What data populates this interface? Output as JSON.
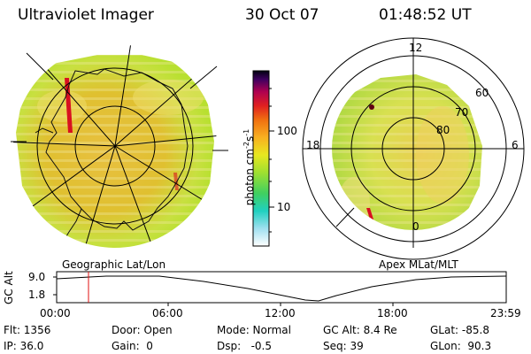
{
  "header": {
    "instrument": "Ultraviolet Imager",
    "date": "30 Oct 07",
    "time": "01:48:52 UT"
  },
  "colorbar": {
    "unit_label": "photon cm",
    "unit_exp1": "-2",
    "unit_mid": "s",
    "unit_exp2": "-1",
    "tick_100": "100",
    "tick_10": "10"
  },
  "geo_panel": {
    "label": "Geographic Lat/Lon"
  },
  "polar_panel": {
    "label": "Apex MLat/MLT",
    "mlt_12": "12",
    "mlt_18": "18",
    "mlt_6": "6",
    "mlt_0": "0",
    "lat_60": "60",
    "lat_70": "70",
    "lat_80": "80"
  },
  "altitude_plot": {
    "ylabel": "GC Alt",
    "tick_high": "9.0",
    "tick_low": "1.8",
    "time_ticks": [
      "00:00",
      "06:00",
      "12:00",
      "18:00",
      "23:59"
    ],
    "marker_time": "01:48:52"
  },
  "status": {
    "flt": "Flt: 1356",
    "ip": "IP: 36.0",
    "door": "Door: Open",
    "gain": "Gain:  0",
    "mode": "Mode: Normal",
    "dsp": "Dsp:   -0.5",
    "gcalt": "GC Alt: 8.4 Re",
    "seq": "Seq: 39",
    "glat": "GLat: -85.8",
    "glon": "GLon:  90.3"
  },
  "colors": {
    "aurora_low": "#c8e830",
    "aurora_mid": "#f0c040",
    "aurora_high": "#e08030",
    "hotspot": "#d81020",
    "marker": "#e01010"
  }
}
